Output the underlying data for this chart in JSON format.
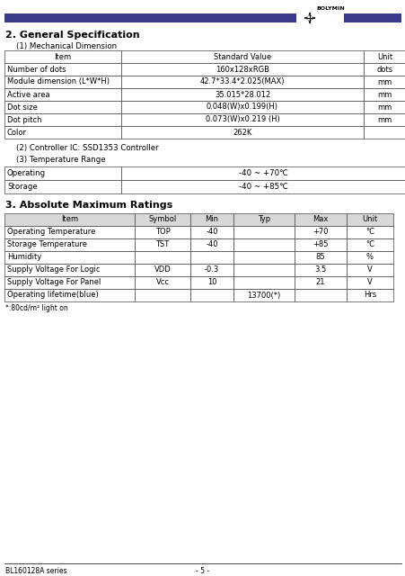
{
  "title_header": "2. General Specification",
  "section1_label": "(1) Mechanical Dimension",
  "mech_table_rows": [
    [
      "Item",
      "Standard Value",
      "Unit"
    ],
    [
      "Number of dots",
      "160x128xRGB",
      "dots"
    ],
    [
      "Module dimension (L*W*H)",
      "42.7*33.4*2.025(MAX)",
      "mm"
    ],
    [
      "Active area",
      "35.015*28.012",
      "mm"
    ],
    [
      "Dot size",
      "0.048(W)x0.199(H)",
      "mm"
    ],
    [
      "Dot pitch",
      "0.073(W)x0.219 (H)",
      "mm"
    ],
    [
      "Color",
      "262K",
      ""
    ]
  ],
  "section2_label": "(2) Controller IC: SSD1353 Controller",
  "section3_label": "(3) Temperature Range",
  "temp_table_rows": [
    [
      "Operating",
      "-40 ~ +70℃"
    ],
    [
      "Storage",
      "-40 ~ +85℃"
    ]
  ],
  "section4_title": "3. Absolute Maximum Ratings",
  "abs_table_headers": [
    "Item",
    "Symbol",
    "Min",
    "Typ",
    "Max",
    "Unit"
  ],
  "abs_table_rows": [
    [
      "Operating Temperature",
      "TOP",
      "-40",
      "",
      "+70",
      "°C"
    ],
    [
      "Storage Temperature",
      "TST",
      "-40",
      "",
      "+85",
      "°C"
    ],
    [
      "Humidity",
      "",
      "",
      "",
      "85",
      "%"
    ],
    [
      "Supply Voltage For Logic",
      "VDD",
      "-0.3",
      "",
      "3.5",
      "V"
    ],
    [
      "Supply Voltage For Panel",
      "Vcc",
      "10",
      "",
      "21",
      "V"
    ],
    [
      "Operating lifetime(blue)",
      "",
      "",
      "13700(*)",
      "",
      "Hrs"
    ]
  ],
  "footnote": "*:80cd/m² light on",
  "footer_left": "BL160128A series",
  "footer_center": "- 5 -",
  "header_bar_color": "#3a3a8c",
  "background_color": "#ffffff"
}
